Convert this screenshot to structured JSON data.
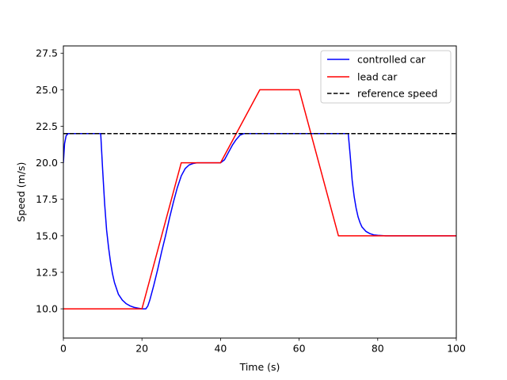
{
  "chart_data": {
    "type": "line",
    "title": "",
    "xlabel": "Time (s)",
    "ylabel": "Speed (m/s)",
    "xlim": [
      0,
      100
    ],
    "ylim": [
      8.0,
      28.0
    ],
    "xticks": [
      0,
      20,
      40,
      60,
      80,
      100
    ],
    "xtick_labels": [
      "0",
      "20",
      "40",
      "60",
      "80",
      "100"
    ],
    "yticks": [
      10.0,
      12.5,
      15.0,
      17.5,
      20.0,
      22.5,
      25.0,
      27.5
    ],
    "ytick_labels": [
      "10.0",
      "12.5",
      "15.0",
      "17.5",
      "20.0",
      "22.5",
      "25.0",
      "27.5"
    ],
    "grid": false,
    "legend_position": "top-right",
    "series": [
      {
        "name": "controlled car",
        "color": "#0000ff",
        "dash": "solid",
        "x": [
          0,
          0.3,
          0.7,
          1.2,
          2,
          4,
          6,
          8,
          9,
          9.5,
          10,
          10.5,
          11,
          11.5,
          12,
          12.5,
          13,
          14,
          15,
          16,
          17,
          18,
          19,
          20,
          21,
          21.5,
          22,
          23,
          24,
          25,
          26,
          27,
          28,
          29,
          30,
          31,
          32,
          33,
          34,
          36,
          38,
          40,
          41,
          42,
          43,
          44,
          45,
          46,
          47,
          50,
          55,
          60,
          65,
          70,
          72.5,
          73,
          73.5,
          74,
          74.5,
          75,
          75.5,
          76,
          77,
          78,
          79,
          80,
          82,
          85,
          90,
          95,
          100
        ],
        "y": [
          20.0,
          21.3,
          21.85,
          22.0,
          22.0,
          22.0,
          22.0,
          22.0,
          22.0,
          22.0,
          19.5,
          17.2,
          15.4,
          14.2,
          13.2,
          12.4,
          11.8,
          11.0,
          10.6,
          10.35,
          10.2,
          10.1,
          10.05,
          10.0,
          10.0,
          10.2,
          10.6,
          11.6,
          12.7,
          13.9,
          15.0,
          16.2,
          17.3,
          18.3,
          19.1,
          19.6,
          19.85,
          19.95,
          20.0,
          20.0,
          20.0,
          20.0,
          20.2,
          20.7,
          21.2,
          21.6,
          21.9,
          22.0,
          22.0,
          22.0,
          22.0,
          22.0,
          22.0,
          22.0,
          22.0,
          20.5,
          18.8,
          17.7,
          16.9,
          16.3,
          15.9,
          15.6,
          15.3,
          15.15,
          15.06,
          15.03,
          15.0,
          15.0,
          15.0,
          15.0,
          15.0
        ]
      },
      {
        "name": "lead car",
        "color": "#ff0000",
        "dash": "solid",
        "x": [
          0,
          20,
          30,
          40,
          50,
          60,
          70,
          100
        ],
        "y": [
          10.0,
          10.0,
          20.0,
          20.0,
          25.0,
          25.0,
          15.0,
          15.0
        ]
      },
      {
        "name": "reference speed",
        "color": "#000000",
        "dash": "dashed",
        "x": [
          0,
          100
        ],
        "y": [
          22.0,
          22.0
        ]
      }
    ]
  }
}
